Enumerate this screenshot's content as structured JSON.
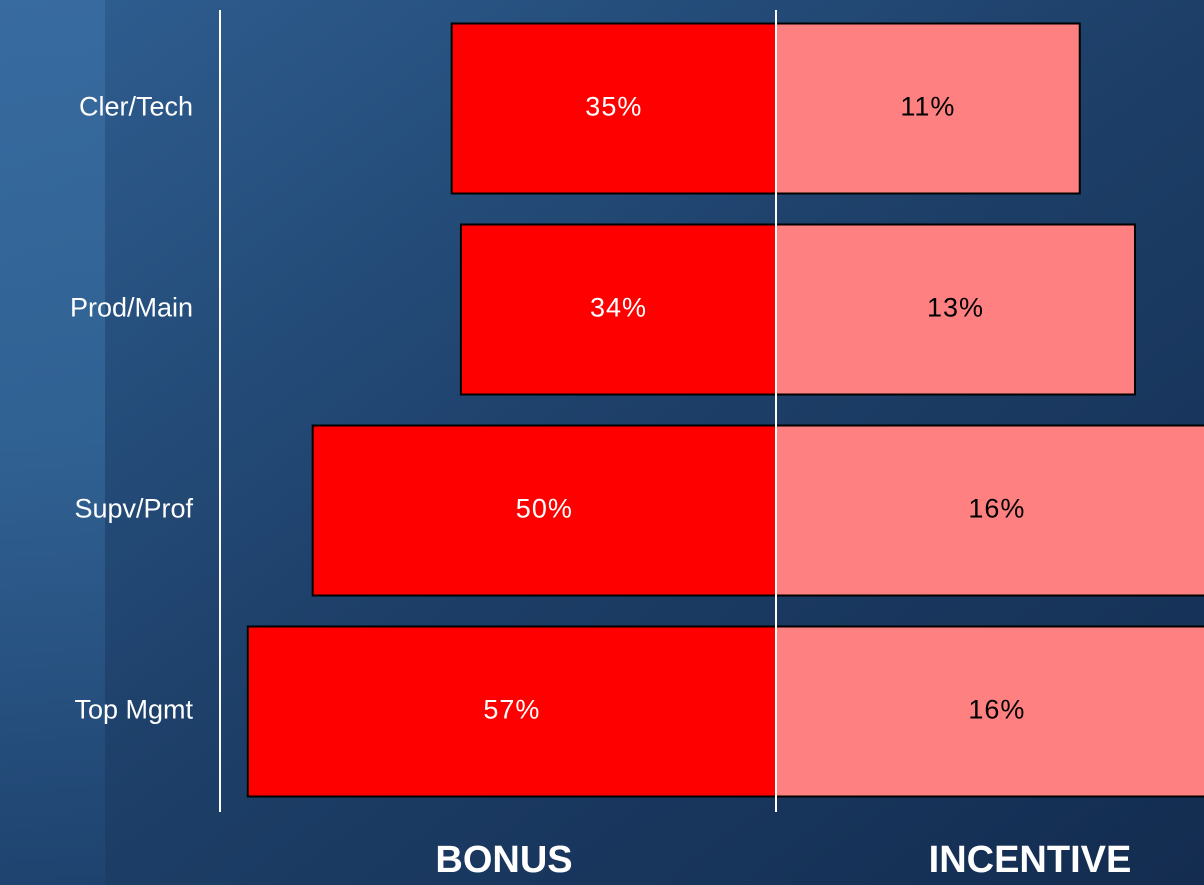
{
  "chart_data": {
    "type": "diverging-bar",
    "categories": [
      "Cler/Tech",
      "Prod/Main",
      "Supv/Prof",
      "Top Mgmt"
    ],
    "series": [
      {
        "name": "BONUS",
        "color": "#ff0000",
        "label_color": "#ffffff",
        "side": "left",
        "xlim": [
          0,
          60
        ],
        "values": [
          35,
          34,
          50,
          57
        ],
        "value_labels": [
          "35%",
          "34%",
          "50%",
          "57%"
        ]
      },
      {
        "name": "INCENTIVE",
        "color": "#ff8080",
        "label_color": "#000000",
        "side": "right",
        "xlim": [
          0,
          15.5
        ],
        "values": [
          11,
          13,
          16,
          16
        ],
        "value_labels": [
          "11%",
          "13%",
          "16%",
          "16%"
        ]
      }
    ]
  }
}
